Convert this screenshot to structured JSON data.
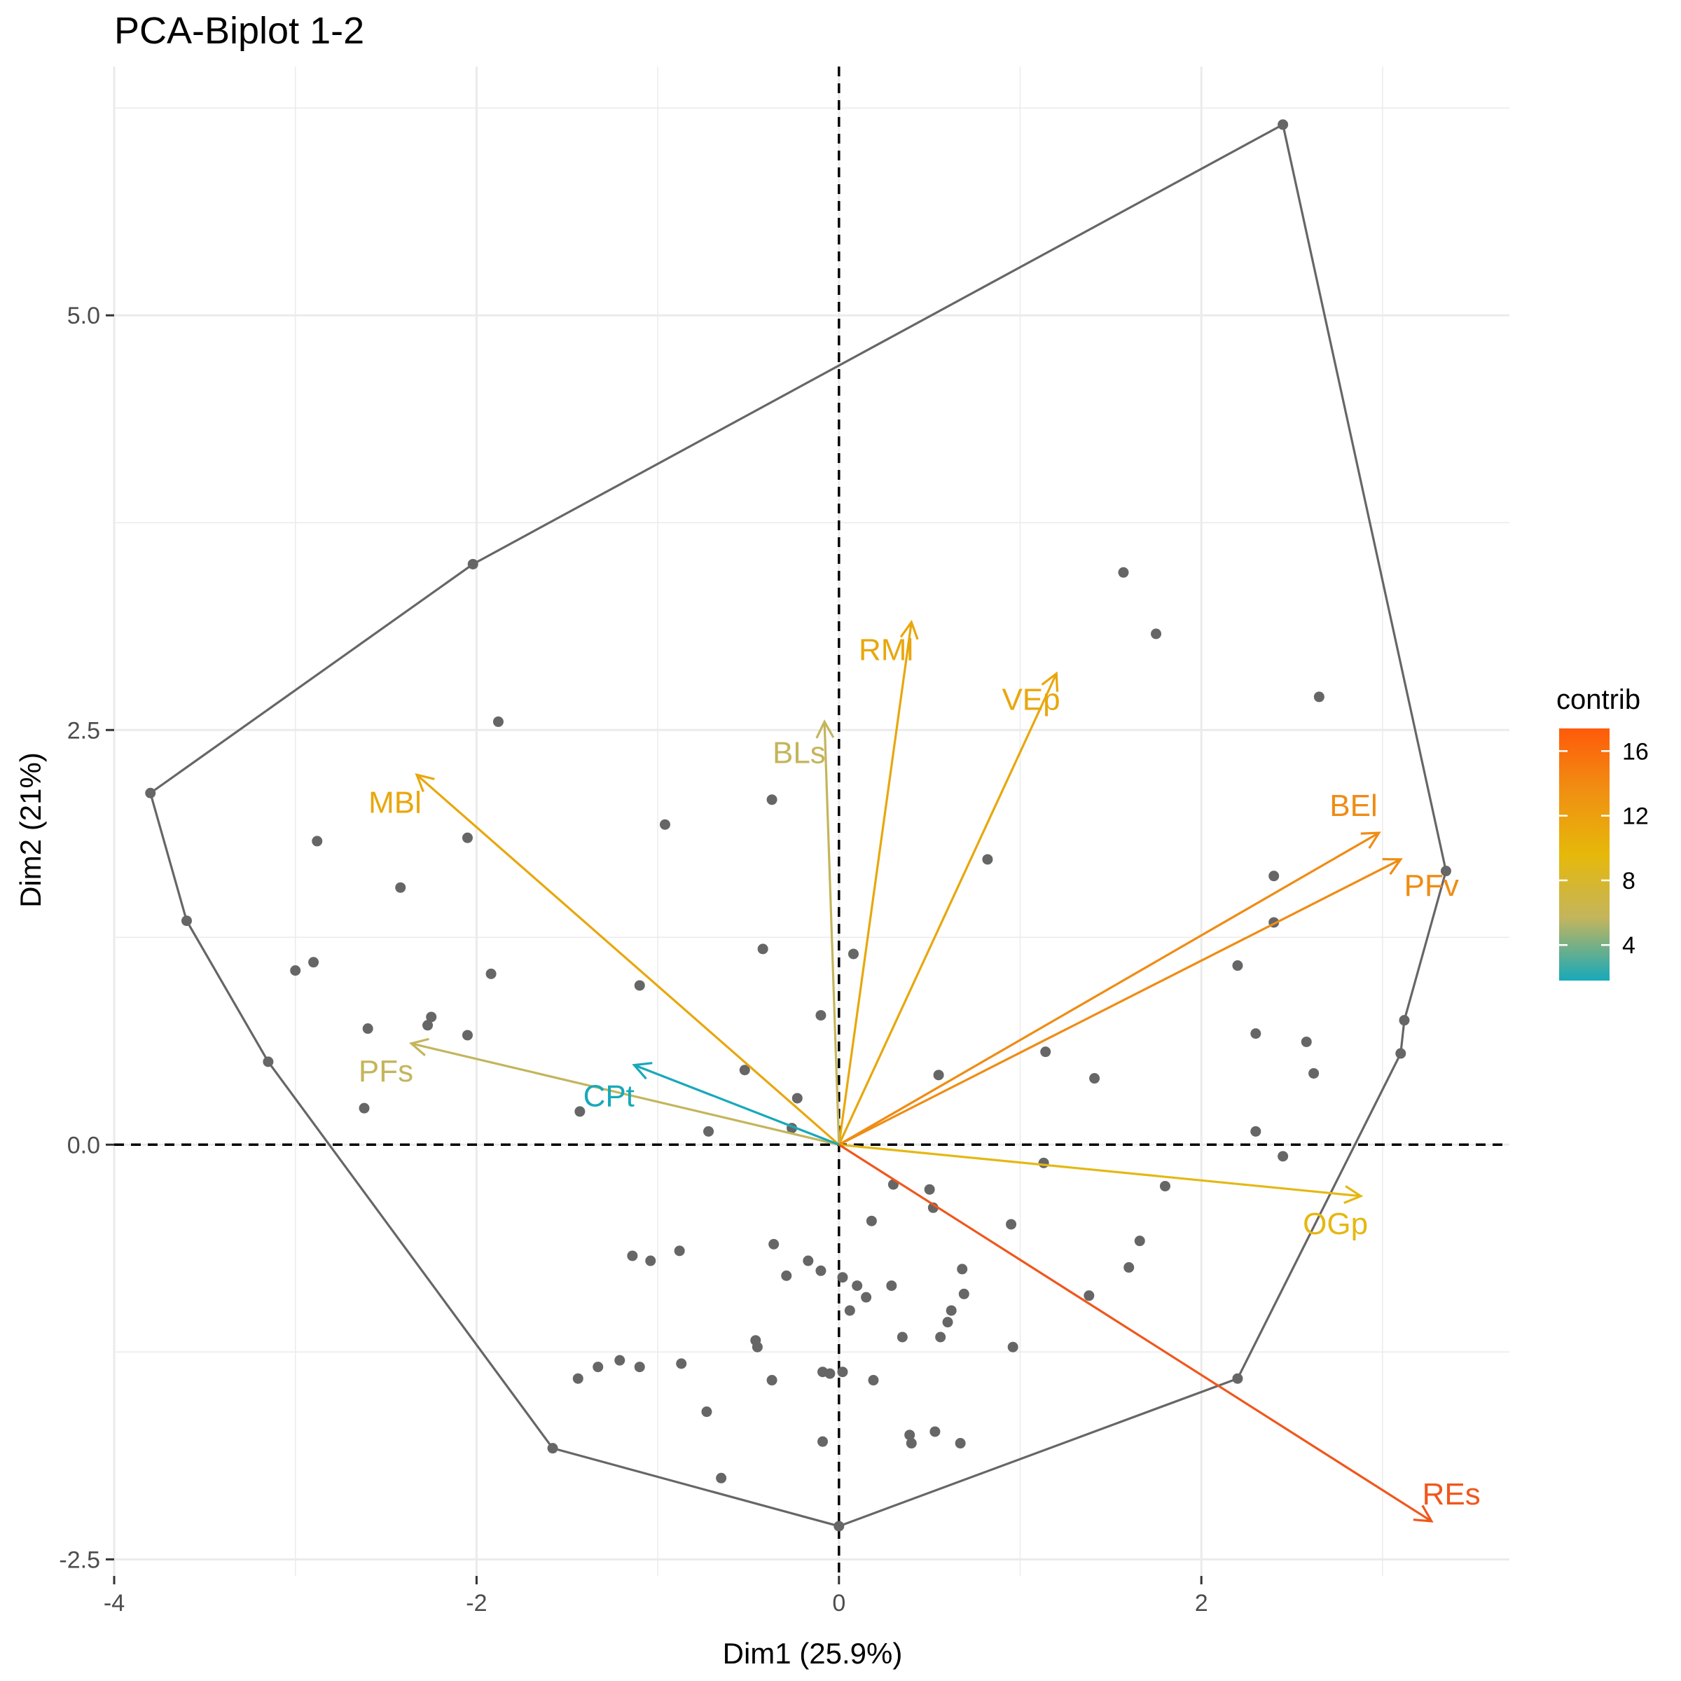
{
  "chart_data": {
    "type": "scatter",
    "title": "PCA-Biplot 1-2",
    "xlabel": "Dim1 (25.9%)",
    "ylabel": "Dim2 (21%)",
    "xlim": [
      -4.0,
      3.7
    ],
    "ylim": [
      -2.6,
      6.5
    ],
    "x_ticks": [
      -4,
      -2,
      0,
      2
    ],
    "x_tick_labels": [
      "-4",
      "-2",
      "0",
      "2"
    ],
    "y_ticks": [
      -2.5,
      0.0,
      2.5,
      5.0
    ],
    "y_tick_labels": [
      "-2.5",
      "0.0",
      "2.5",
      "5.0"
    ],
    "grid": true,
    "reference_lines": {
      "x": 0,
      "y": 0,
      "style": "dashed"
    },
    "individuals": [
      [
        2.45,
        6.15
      ],
      [
        -2.02,
        3.5
      ],
      [
        -3.8,
        2.12
      ],
      [
        -3.6,
        1.35
      ],
      [
        -3.15,
        0.5
      ],
      [
        -1.58,
        -1.83
      ],
      [
        0.0,
        -2.3
      ],
      [
        2.2,
        -1.41
      ],
      [
        3.35,
        1.65
      ],
      [
        3.1,
        0.55
      ],
      [
        3.12,
        0.75
      ],
      [
        1.57,
        3.45
      ],
      [
        1.75,
        3.08
      ],
      [
        2.65,
        2.7
      ],
      [
        -1.88,
        2.55
      ],
      [
        -0.37,
        2.08
      ],
      [
        -0.96,
        1.93
      ],
      [
        0.82,
        1.72
      ],
      [
        -2.88,
        1.83
      ],
      [
        -2.05,
        1.85
      ],
      [
        -2.42,
        1.55
      ],
      [
        -3.0,
        1.05
      ],
      [
        -2.9,
        1.1
      ],
      [
        -1.92,
        1.03
      ],
      [
        -0.42,
        1.18
      ],
      [
        0.08,
        1.15
      ],
      [
        -1.1,
        0.96
      ],
      [
        -0.1,
        0.78
      ],
      [
        -2.25,
        0.77
      ],
      [
        -2.27,
        0.72
      ],
      [
        -2.6,
        0.7
      ],
      [
        -2.05,
        0.66
      ],
      [
        2.4,
        1.62
      ],
      [
        2.4,
        1.34
      ],
      [
        2.2,
        1.08
      ],
      [
        2.3,
        0.67
      ],
      [
        2.58,
        0.62
      ],
      [
        2.62,
        0.43
      ],
      [
        1.14,
        0.56
      ],
      [
        1.41,
        0.4
      ],
      [
        0.55,
        0.42
      ],
      [
        -0.52,
        0.45
      ],
      [
        -0.23,
        0.28
      ],
      [
        -2.62,
        0.22
      ],
      [
        -1.43,
        0.2
      ],
      [
        -0.72,
        0.08
      ],
      [
        -0.26,
        0.1
      ],
      [
        2.3,
        0.08
      ],
      [
        2.45,
        -0.07
      ],
      [
        1.13,
        -0.11
      ],
      [
        1.8,
        -0.25
      ],
      [
        0.3,
        -0.24
      ],
      [
        0.5,
        -0.27
      ],
      [
        0.52,
        -0.38
      ],
      [
        0.18,
        -0.46
      ],
      [
        0.95,
        -0.48
      ],
      [
        1.66,
        -0.58
      ],
      [
        -0.36,
        -0.6
      ],
      [
        -0.88,
        -0.64
      ],
      [
        -1.14,
        -0.67
      ],
      [
        -1.04,
        -0.7
      ],
      [
        -0.17,
        -0.7
      ],
      [
        1.6,
        -0.74
      ],
      [
        0.68,
        -0.75
      ],
      [
        -0.1,
        -0.76
      ],
      [
        -0.29,
        -0.79
      ],
      [
        0.02,
        -0.8
      ],
      [
        0.1,
        -0.85
      ],
      [
        0.29,
        -0.85
      ],
      [
        0.69,
        -0.9
      ],
      [
        1.38,
        -0.91
      ],
      [
        0.15,
        -0.92
      ],
      [
        0.06,
        -1.0
      ],
      [
        0.62,
        -1.0
      ],
      [
        0.6,
        -1.07
      ],
      [
        0.56,
        -1.16
      ],
      [
        0.35,
        -1.16
      ],
      [
        0.96,
        -1.22
      ],
      [
        -0.46,
        -1.18
      ],
      [
        -0.45,
        -1.22
      ],
      [
        -1.21,
        -1.3
      ],
      [
        -1.1,
        -1.34
      ],
      [
        -0.87,
        -1.32
      ],
      [
        -1.33,
        -1.34
      ],
      [
        -1.44,
        -1.41
      ],
      [
        -0.09,
        -1.37
      ],
      [
        0.02,
        -1.37
      ],
      [
        -0.05,
        -1.38
      ],
      [
        -0.37,
        -1.42
      ],
      [
        0.19,
        -1.42
      ],
      [
        -0.73,
        -1.61
      ],
      [
        0.39,
        -1.75
      ],
      [
        0.53,
        -1.73
      ],
      [
        0.4,
        -1.8
      ],
      [
        0.67,
        -1.8
      ],
      [
        -0.09,
        -1.79
      ],
      [
        -0.65,
        -2.01
      ]
    ],
    "hull_order": [
      [
        2.45,
        6.15
      ],
      [
        3.35,
        1.65
      ],
      [
        3.12,
        0.75
      ],
      [
        3.1,
        0.55
      ],
      [
        2.2,
        -1.41
      ],
      [
        0.0,
        -2.3
      ],
      [
        -1.58,
        -1.83
      ],
      [
        -3.15,
        0.5
      ],
      [
        -3.6,
        1.35
      ],
      [
        -3.8,
        2.12
      ],
      [
        -2.02,
        3.5
      ]
    ],
    "variables": [
      {
        "name": "RMl",
        "x": 0.4,
        "y": 3.15,
        "contrib": 10.2,
        "color": "#e8a70c",
        "label_x": 0.26,
        "label_y": 2.97
      },
      {
        "name": "VEp",
        "x": 1.2,
        "y": 2.84,
        "contrib": 10.6,
        "color": "#e8a70c",
        "label_x": 1.06,
        "label_y": 2.67
      },
      {
        "name": "BLs",
        "x": -0.08,
        "y": 2.55,
        "contrib": 6.4,
        "color": "#c4b55c",
        "label_x": -0.22,
        "label_y": 2.35
      },
      {
        "name": "MBl",
        "x": -2.33,
        "y": 2.23,
        "contrib": 11.0,
        "color": "#e8a70c",
        "label_x": -2.45,
        "label_y": 2.05
      },
      {
        "name": "BEl",
        "x": 2.98,
        "y": 1.88,
        "contrib": 13.2,
        "color": "#ef8c14",
        "label_x": 2.84,
        "label_y": 2.03
      },
      {
        "name": "PFv",
        "x": 3.1,
        "y": 1.72,
        "contrib": 13.6,
        "color": "#ef8c14",
        "label_x": 3.27,
        "label_y": 1.55
      },
      {
        "name": "PFs",
        "x": -2.36,
        "y": 0.61,
        "contrib": 6.2,
        "color": "#c4b55c",
        "label_x": -2.5,
        "label_y": 0.43
      },
      {
        "name": "CPt",
        "x": -1.13,
        "y": 0.48,
        "contrib": 2.2,
        "color": "#17a9ba",
        "label_x": -1.27,
        "label_y": 0.28
      },
      {
        "name": "OGp",
        "x": 2.88,
        "y": -0.31,
        "contrib": 9.0,
        "color": "#e4b812",
        "label_x": 2.74,
        "label_y": -0.49
      },
      {
        "name": "REs",
        "x": 3.27,
        "y": -2.27,
        "contrib": 16.8,
        "color": "#f0571c",
        "label_x": 3.38,
        "label_y": -2.12
      }
    ],
    "legend": {
      "title": "contrib",
      "position": "right",
      "ticks": [
        4,
        8,
        12,
        16
      ],
      "tick_labels": [
        "4",
        "8",
        "12",
        "16"
      ],
      "range": [
        1.8,
        17.4
      ],
      "colors": [
        "#17a9ba",
        "#c4b55c",
        "#e6b80a",
        "#f09012",
        "#ff5a0a"
      ]
    }
  }
}
